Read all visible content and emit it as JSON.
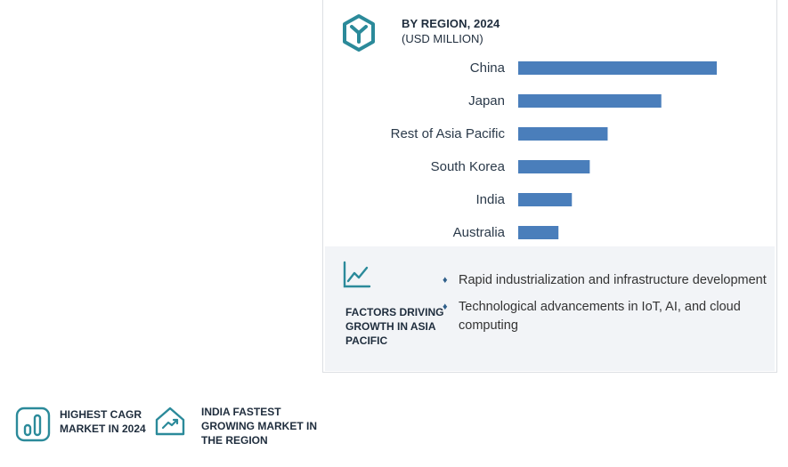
{
  "header": {
    "title": "BY REGION, 2024",
    "subtitle": "(USD MILLION)",
    "logo_icon": "hexagon-y-logo-icon"
  },
  "chart_data": {
    "type": "bar",
    "orientation": "horizontal",
    "categories": [
      "China",
      "Japan",
      "Rest of Asia Pacific",
      "South Korea",
      "India",
      "Australia"
    ],
    "values": [
      222,
      160,
      100,
      80,
      60,
      45
    ],
    "color": "#4a7ebb"
  },
  "factors": {
    "icon": "trend-chart-icon",
    "label": "FACTORS DRIVING GROWTH IN ASIA PACIFIC",
    "items": [
      "Rapid industrialization and infrastructure development",
      "Technological advancements in IoT, AI, and cloud computing"
    ],
    "bullet": "♦"
  },
  "stats": {
    "cagr": {
      "icon": "bar-growth-icon",
      "text": "HIGHEST CAGR MARKET IN 2024"
    },
    "india": {
      "icon": "house-trend-icon",
      "text": "INDIA FASTEST GROWING MARKET IN THE REGION"
    }
  },
  "colors": {
    "accent": "#2b8a9a",
    "bar": "#4a7ebb",
    "text": "#1f2d3d"
  }
}
